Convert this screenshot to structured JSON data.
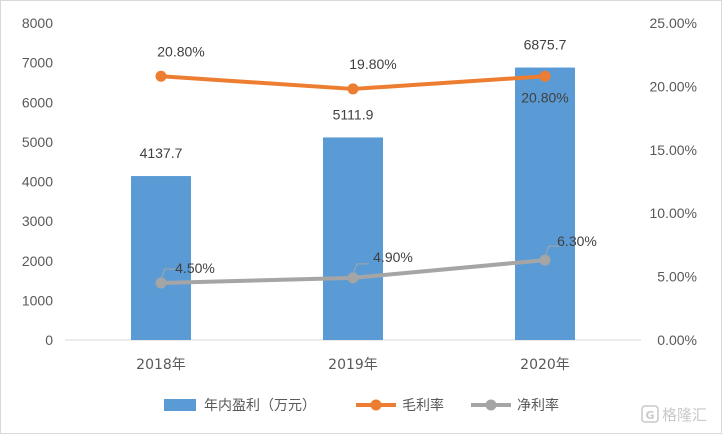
{
  "chart_data": {
    "type": "bar",
    "categories": [
      "2018年",
      "2019年",
      "2020年"
    ],
    "left_axis": {
      "min": 0,
      "max": 8000,
      "step": 1000,
      "ticks": [
        "0",
        "1000",
        "2000",
        "3000",
        "4000",
        "5000",
        "6000",
        "7000",
        "8000"
      ]
    },
    "right_axis": {
      "min": 0,
      "max": 25,
      "step": 5,
      "ticks": [
        "0.00%",
        "5.00%",
        "10.00%",
        "15.00%",
        "20.00%",
        "25.00%"
      ]
    },
    "series": [
      {
        "name": "年内盈利（万元）",
        "type": "bar",
        "axis": "left",
        "color": "#5b9bd5",
        "values": [
          4137.7,
          5111.9,
          6875.7
        ],
        "labels": [
          "4137.7",
          "5111.9",
          "6875.7"
        ]
      },
      {
        "name": "毛利率",
        "type": "line",
        "axis": "right",
        "color": "#ed7d31",
        "values": [
          20.8,
          19.8,
          20.8
        ],
        "labels": [
          "20.80%",
          "19.80%",
          "20.80%"
        ]
      },
      {
        "name": "净利率",
        "type": "line",
        "axis": "right",
        "color": "#a5a5a5",
        "values": [
          4.5,
          4.9,
          6.3
        ],
        "labels": [
          "4.50%",
          "4.90%",
          "6.30%"
        ]
      }
    ],
    "grid": false,
    "legend_position": "bottom"
  },
  "watermark": {
    "text": "格隆汇",
    "icon": "g-logo-icon"
  }
}
